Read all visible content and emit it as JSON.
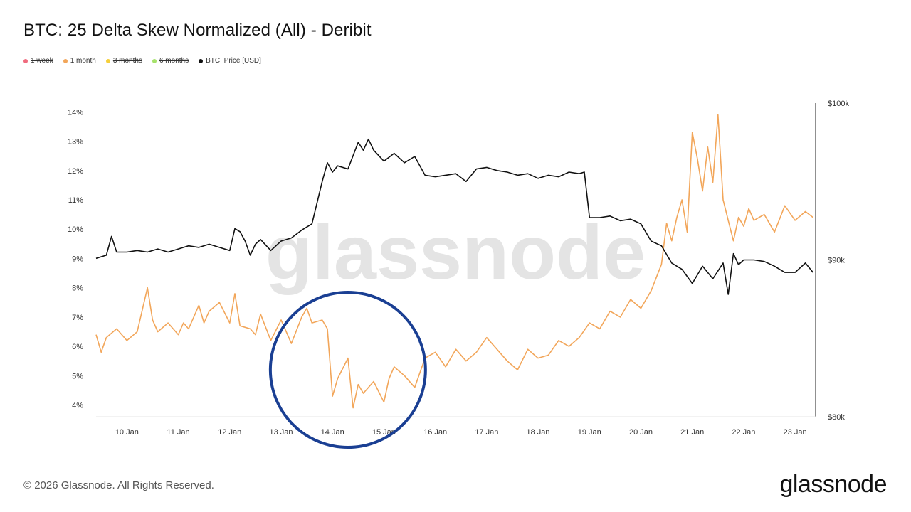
{
  "header": {
    "title": "BTC: 25 Delta Skew Normalized (All) - Deribit"
  },
  "legend": [
    {
      "label": "1 week",
      "color": "#f06b7e",
      "active": false
    },
    {
      "label": "1 month",
      "color": "#f2a65a",
      "active": true
    },
    {
      "label": "3 months",
      "color": "#f5cf3b",
      "active": false
    },
    {
      "label": "6 months",
      "color": "#a6e26b",
      "active": false
    },
    {
      "label": "BTC: Price [USD]",
      "color": "#111111",
      "active": true
    }
  ],
  "watermark": "glassnode",
  "footer": {
    "copyright": "© 2026 Glassnode. All Rights Reserved.",
    "logo": "glassnode"
  },
  "chart_data": {
    "type": "line",
    "x_ticks": [
      "10 Jan",
      "11 Jan",
      "12 Jan",
      "13 Jan",
      "14 Jan",
      "15 Jan",
      "16 Jan",
      "17 Jan",
      "18 Jan",
      "19 Jan",
      "20 Jan",
      "21 Jan",
      "22 Jan",
      "23 Jan"
    ],
    "y_left_ticks": [
      "4%",
      "5%",
      "6%",
      "7%",
      "8%",
      "9%",
      "10%",
      "11%",
      "12%",
      "13%",
      "14%"
    ],
    "y_right_ticks": [
      "$80k",
      "$90k",
      "$100k"
    ],
    "y_left_range": [
      3.6,
      14.3
    ],
    "y_right_range": [
      80000,
      100000
    ],
    "x_range_days": [
      9.4,
      23.4
    ],
    "series": [
      {
        "name": "1 month",
        "axis": "left",
        "color": "#f2a65a",
        "x": [
          9.4,
          9.5,
          9.6,
          9.8,
          10.0,
          10.2,
          10.4,
          10.5,
          10.6,
          10.8,
          11.0,
          11.1,
          11.2,
          11.4,
          11.5,
          11.6,
          11.8,
          12.0,
          12.1,
          12.2,
          12.4,
          12.5,
          12.6,
          12.8,
          13.0,
          13.2,
          13.4,
          13.5,
          13.6,
          13.8,
          13.9,
          14.0,
          14.1,
          14.3,
          14.4,
          14.5,
          14.6,
          14.8,
          15.0,
          15.1,
          15.2,
          15.4,
          15.6,
          15.8,
          16.0,
          16.2,
          16.4,
          16.6,
          16.8,
          17.0,
          17.2,
          17.4,
          17.6,
          17.8,
          18.0,
          18.2,
          18.4,
          18.6,
          18.8,
          19.0,
          19.2,
          19.4,
          19.6,
          19.8,
          20.0,
          20.2,
          20.4,
          20.5,
          20.6,
          20.7,
          20.8,
          20.9,
          21.0,
          21.1,
          21.2,
          21.3,
          21.4,
          21.5,
          21.6,
          21.7,
          21.8,
          21.9,
          22.0,
          22.1,
          22.2,
          22.4,
          22.6,
          22.8,
          23.0,
          23.2,
          23.35
        ],
        "values": [
          6.4,
          5.8,
          6.3,
          6.6,
          6.2,
          6.5,
          8.0,
          6.9,
          6.5,
          6.8,
          6.4,
          6.8,
          6.6,
          7.4,
          6.8,
          7.2,
          7.5,
          6.8,
          7.8,
          6.7,
          6.6,
          6.4,
          7.1,
          6.2,
          6.9,
          6.1,
          7.0,
          7.3,
          6.8,
          6.9,
          6.6,
          4.3,
          4.9,
          5.6,
          3.9,
          4.7,
          4.4,
          4.8,
          4.1,
          4.9,
          5.3,
          5.0,
          4.6,
          5.6,
          5.8,
          5.3,
          5.9,
          5.5,
          5.8,
          6.3,
          5.9,
          5.5,
          5.2,
          5.9,
          5.6,
          5.7,
          6.2,
          6.0,
          6.3,
          6.8,
          6.6,
          7.2,
          7.0,
          7.6,
          7.3,
          7.9,
          8.8,
          10.2,
          9.6,
          10.4,
          11.0,
          9.9,
          13.3,
          12.4,
          11.3,
          12.8,
          11.6,
          13.9,
          11.0,
          10.3,
          9.6,
          10.4,
          10.1,
          10.7,
          10.3,
          10.5,
          9.9,
          10.8,
          10.3,
          10.6,
          10.4
        ]
      },
      {
        "name": "BTC: Price [USD]",
        "axis": "right",
        "color": "#111111",
        "x": [
          9.4,
          9.6,
          9.7,
          9.8,
          10.0,
          10.2,
          10.4,
          10.6,
          10.8,
          11.0,
          11.2,
          11.4,
          11.6,
          11.8,
          12.0,
          12.1,
          12.2,
          12.3,
          12.4,
          12.5,
          12.6,
          12.8,
          13.0,
          13.2,
          13.4,
          13.6,
          13.8,
          13.9,
          14.0,
          14.1,
          14.3,
          14.5,
          14.6,
          14.7,
          14.8,
          15.0,
          15.2,
          15.4,
          15.6,
          15.8,
          16.0,
          16.2,
          16.4,
          16.6,
          16.8,
          17.0,
          17.2,
          17.4,
          17.6,
          17.8,
          18.0,
          18.2,
          18.4,
          18.6,
          18.8,
          18.9,
          19.0,
          19.2,
          19.4,
          19.6,
          19.8,
          20.0,
          20.2,
          20.4,
          20.6,
          20.8,
          21.0,
          21.2,
          21.4,
          21.6,
          21.7,
          21.8,
          21.9,
          22.0,
          22.2,
          22.4,
          22.6,
          22.8,
          23.0,
          23.2,
          23.35
        ],
        "values": [
          90100,
          90300,
          91500,
          90500,
          90500,
          90600,
          90500,
          90700,
          90500,
          90700,
          90900,
          90800,
          91000,
          90800,
          90600,
          92000,
          91800,
          91200,
          90300,
          91000,
          91300,
          90600,
          91200,
          91400,
          91900,
          92300,
          95000,
          96200,
          95600,
          96000,
          95800,
          97500,
          97000,
          97700,
          97000,
          96300,
          96800,
          96200,
          96600,
          95400,
          95300,
          95400,
          95500,
          95000,
          95800,
          95900,
          95700,
          95600,
          95400,
          95500,
          95200,
          95400,
          95300,
          95600,
          95500,
          95600,
          92700,
          92700,
          92800,
          92500,
          92600,
          92300,
          91200,
          90900,
          89800,
          89400,
          88500,
          89600,
          88800,
          89800,
          87800,
          90400,
          89700,
          90000,
          90000,
          89900,
          89600,
          89200,
          89200,
          89800,
          89200
        ]
      }
    ],
    "annotations": [
      {
        "type": "circle",
        "color": "#1a3f93",
        "x_center_day": 14.3,
        "y_center": 5.2
      }
    ]
  }
}
